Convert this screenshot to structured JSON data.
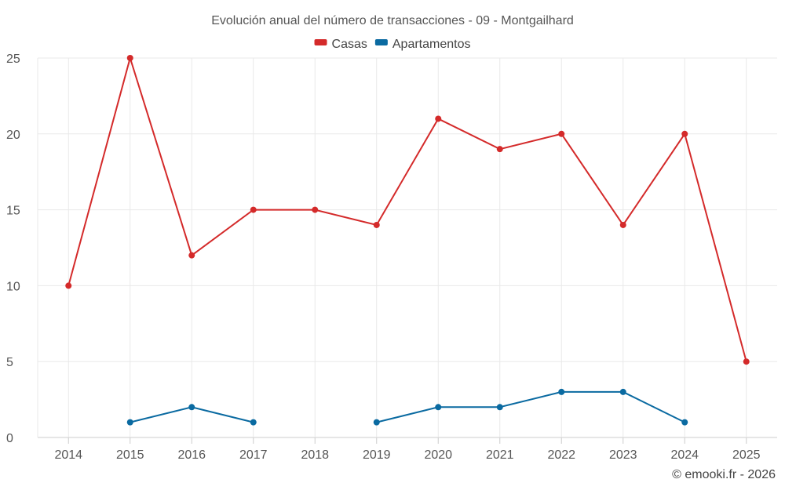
{
  "chart_data": {
    "type": "line",
    "title": "Evolución anual del número de transacciones - 09 - Montgailhard",
    "categories": [
      "2014",
      "2015",
      "2016",
      "2017",
      "2018",
      "2019",
      "2020",
      "2021",
      "2022",
      "2023",
      "2024",
      "2025"
    ],
    "series": [
      {
        "name": "Casas",
        "color": "#d42a2a",
        "values": [
          10,
          25,
          12,
          15,
          15,
          14,
          21,
          19,
          20,
          14,
          20,
          5
        ]
      },
      {
        "name": "Apartamentos",
        "color": "#0a6aa1",
        "values": [
          null,
          1,
          2,
          1,
          null,
          1,
          2,
          2,
          3,
          3,
          1,
          null
        ]
      }
    ],
    "ylim": [
      0,
      25
    ],
    "yticks": [
      0,
      5,
      10,
      15,
      20,
      25
    ],
    "xlabel": "",
    "ylabel": "",
    "grid": true,
    "legend": "top-center"
  },
  "credit": "© emooki.fr - 2026"
}
